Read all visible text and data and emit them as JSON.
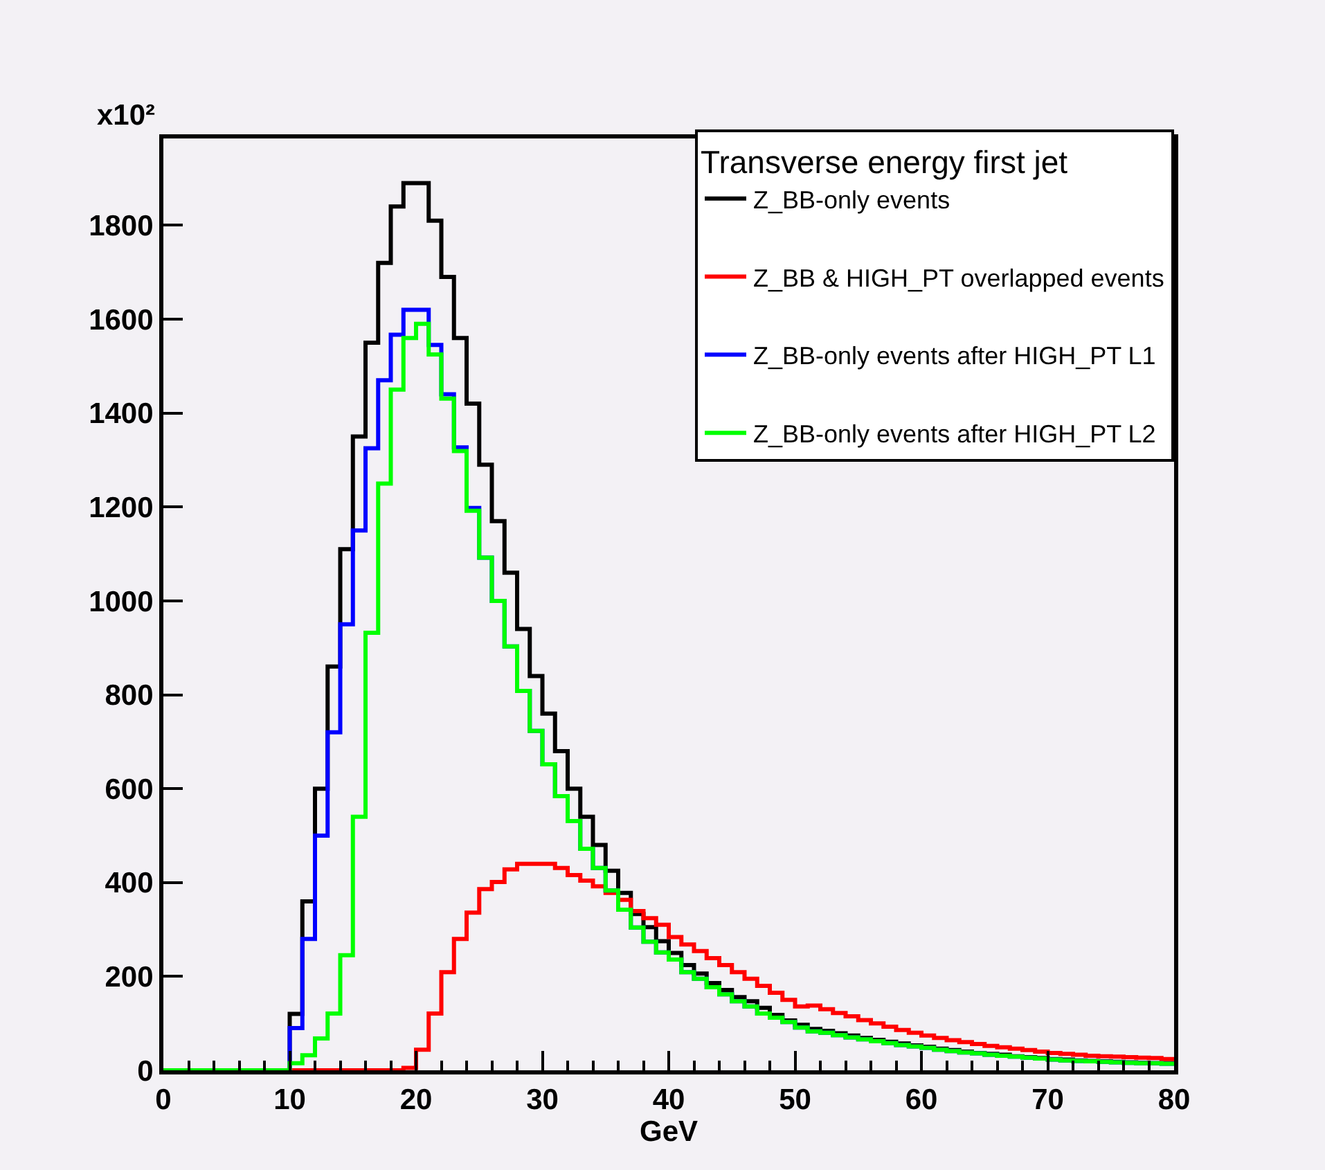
{
  "chart_data": {
    "type": "histogram",
    "legend_title": "Transverse energy first jet",
    "xlabel": "GeV",
    "annotations": [
      "x10²"
    ],
    "bins": [
      0,
      1,
      2,
      3,
      4,
      5,
      6,
      7,
      8,
      9,
      10,
      11,
      12,
      13,
      14,
      15,
      16,
      17,
      18,
      19,
      20,
      21,
      22,
      23,
      24,
      25,
      26,
      27,
      28,
      29,
      30,
      31,
      32,
      33,
      34,
      35,
      36,
      37,
      38,
      39,
      40,
      41,
      42,
      43,
      44,
      45,
      46,
      47,
      48,
      49,
      50,
      51,
      52,
      53,
      54,
      55,
      56,
      57,
      58,
      59,
      60,
      61,
      62,
      63,
      64,
      65,
      66,
      67,
      68,
      69,
      70,
      71,
      72,
      73,
      74,
      75,
      76,
      77,
      78,
      79,
      80
    ],
    "series": [
      {
        "name": "Z_BB-only events",
        "color": "#000000",
        "values": [
          0,
          0,
          0,
          0,
          0,
          0,
          0,
          0,
          0,
          0,
          120,
          360,
          600,
          860,
          1110,
          1350,
          1550,
          1720,
          1840,
          1890,
          1890,
          1810,
          1690,
          1560,
          1420,
          1290,
          1170,
          1060,
          940,
          840,
          760,
          680,
          600,
          540,
          480,
          425,
          378,
          333,
          305,
          275,
          250,
          224,
          206,
          186,
          171,
          156,
          147,
          133,
          118,
          106,
          97,
          88,
          84,
          79,
          74,
          69,
          65,
          61,
          57,
          53,
          50,
          46,
          43,
          40,
          37,
          35,
          33,
          30,
          28,
          26,
          24,
          23,
          21,
          20,
          19,
          18,
          17,
          16,
          15,
          15
        ]
      },
      {
        "name": "Z_BB & HIGH_PT overlapped events",
        "color": "#ff0000",
        "values": [
          0,
          0,
          0,
          0,
          0,
          0,
          0,
          0,
          0,
          0,
          0,
          0,
          0,
          0,
          0,
          0,
          0,
          0,
          0,
          5,
          44,
          121,
          209,
          280,
          336,
          386,
          401,
          428,
          440,
          440,
          440,
          431,
          416,
          404,
          392,
          378,
          363,
          339,
          324,
          310,
          284,
          268,
          254,
          239,
          224,
          209,
          195,
          180,
          165,
          150,
          136,
          138,
          130,
          122,
          115,
          107,
          100,
          93,
          86,
          80,
          74,
          69,
          64,
          60,
          56,
          52,
          49,
          46,
          43,
          40,
          37,
          35,
          33,
          31,
          30,
          29,
          28,
          27,
          26,
          24
        ]
      },
      {
        "name": "Z_BB-only events after HIGH_PT L1",
        "color": "#0000ff",
        "values": [
          0,
          0,
          0,
          0,
          0,
          0,
          0,
          0,
          0,
          0,
          90,
          280,
          500,
          720,
          950,
          1150,
          1325,
          1470,
          1567,
          1620,
          1620,
          1545,
          1440,
          1327,
          1198,
          1092,
          1000,
          903,
          808,
          723,
          652,
          584,
          531,
          472,
          431,
          383,
          342,
          304,
          274,
          251,
          236,
          209,
          195,
          177,
          162,
          147,
          136,
          121,
          112,
          103,
          91,
          83,
          80,
          75,
          70,
          66,
          62,
          58,
          54,
          51,
          48,
          44,
          41,
          38,
          36,
          33,
          31,
          29,
          27,
          25,
          23,
          21,
          20,
          19,
          18,
          17,
          16,
          15,
          15,
          14
        ]
      },
      {
        "name": "Z_BB-only events after HIGH_PT L2",
        "color": "#00ff00",
        "values": [
          0,
          0,
          0,
          0,
          0,
          0,
          0,
          0,
          0,
          0,
          15,
          32,
          68,
          121,
          245,
          540,
          932,
          1250,
          1450,
          1560,
          1590,
          1525,
          1431,
          1319,
          1192,
          1092,
          1000,
          903,
          808,
          723,
          652,
          584,
          531,
          472,
          431,
          383,
          342,
          304,
          274,
          251,
          236,
          209,
          195,
          177,
          162,
          147,
          136,
          121,
          112,
          103,
          91,
          83,
          80,
          75,
          70,
          66,
          62,
          58,
          54,
          51,
          48,
          44,
          41,
          38,
          36,
          33,
          31,
          29,
          27,
          25,
          23,
          21,
          20,
          19,
          18,
          17,
          16,
          15,
          15,
          14
        ]
      }
    ],
    "xlim": [
      0,
      80
    ],
    "xticks": [
      0,
      10,
      20,
      30,
      40,
      50,
      60,
      70,
      80
    ],
    "ylim": [
      0,
      1985
    ],
    "yticks": [
      0,
      200,
      400,
      600,
      800,
      1000,
      1200,
      1400,
      1600,
      1800
    ],
    "grid": false,
    "legend": "top right",
    "line_style": "solid"
  }
}
